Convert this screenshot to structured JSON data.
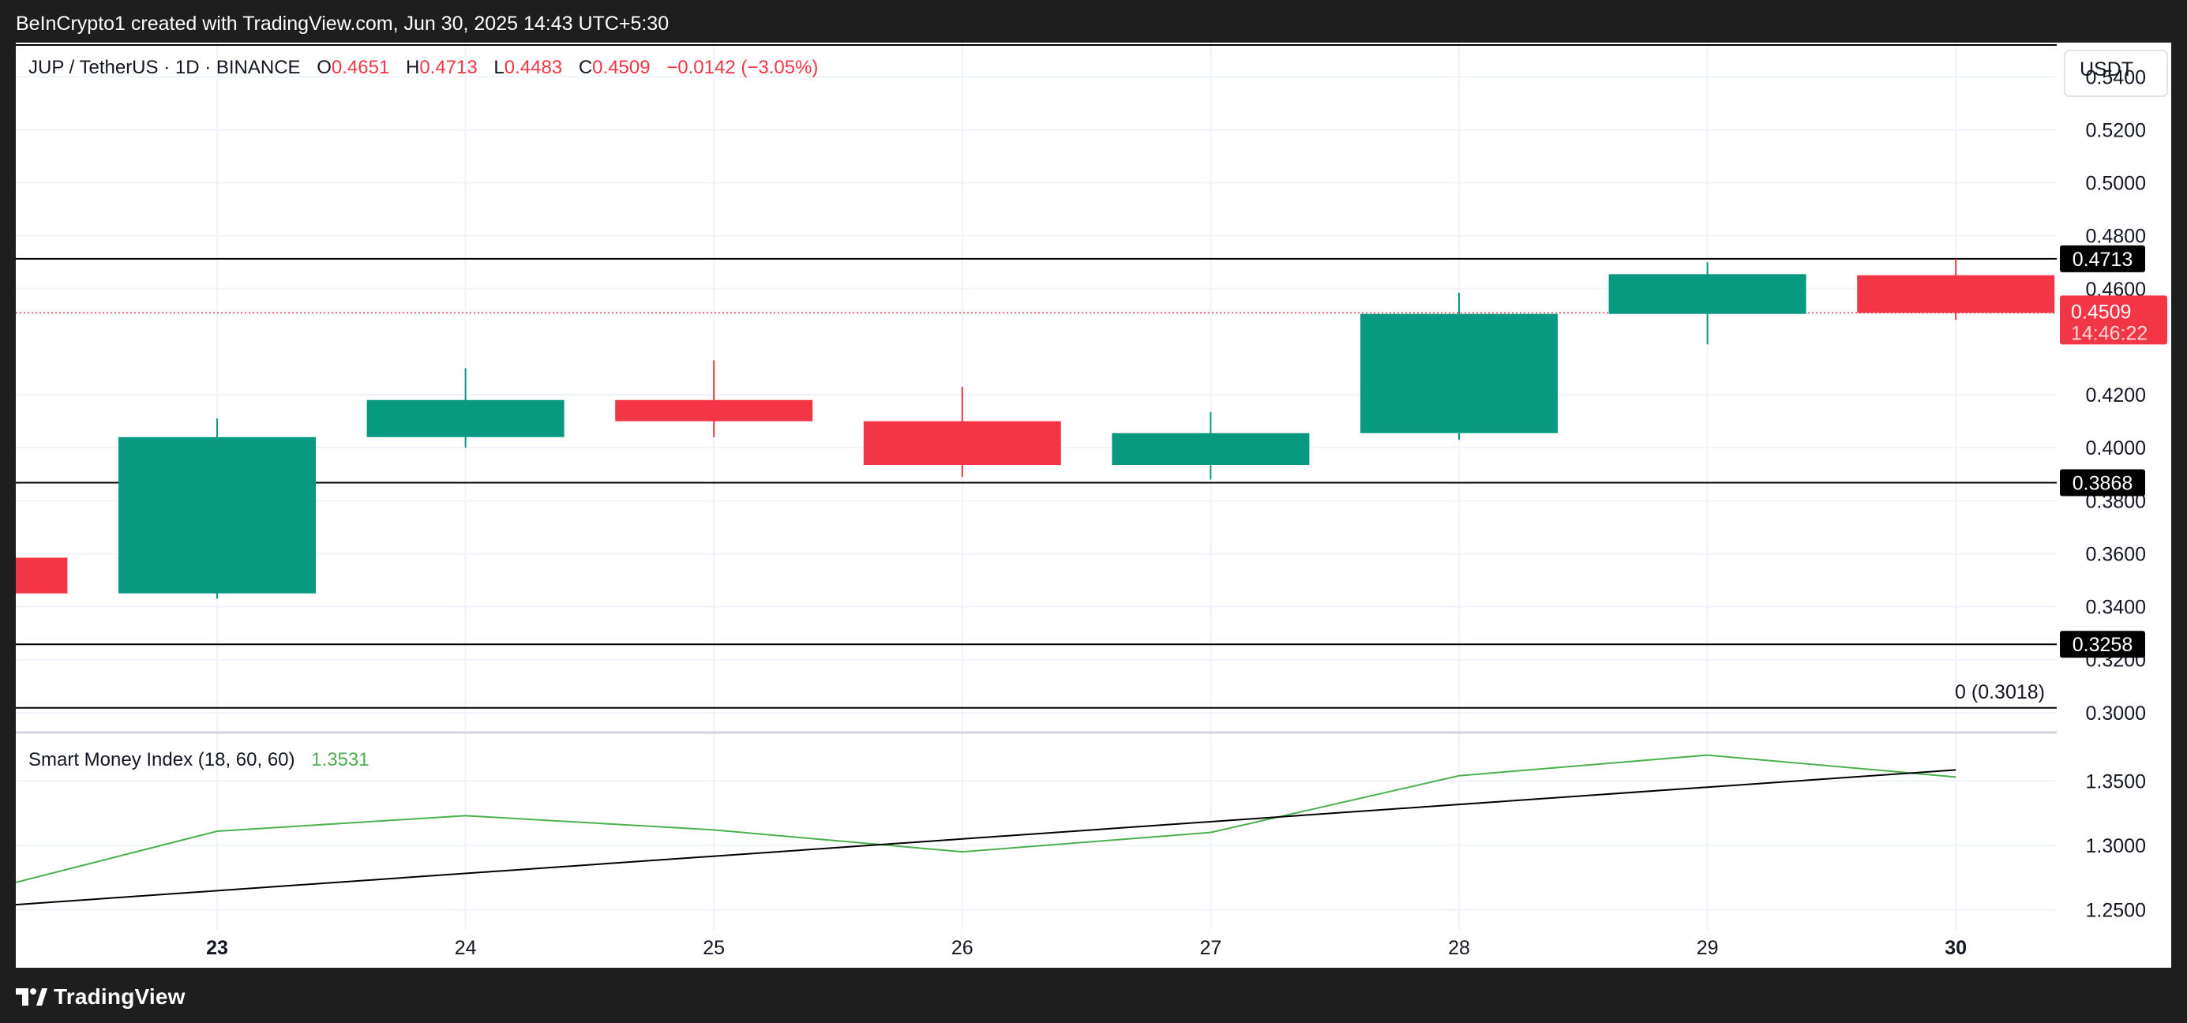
{
  "header": {
    "attribution": "BeInCrypto1 created with TradingView.com, Jun 30, 2025 14:43 UTC+5:30"
  },
  "footer": {
    "brand": "TradingView"
  },
  "colors": {
    "up": "#089981",
    "down": "#f23645",
    "smi_line": "#4caf50",
    "level_line": "#000000",
    "grid": "#f0f3fa"
  },
  "chart_data": [
    {
      "type": "candlestick",
      "symbol_line": {
        "symbol": "JUP / TetherUS · 1D · BINANCE",
        "o_label": "O",
        "o_value": "0.4651",
        "h_label": "H",
        "h_value": "0.4713",
        "l_label": "L",
        "l_value": "0.4483",
        "c_label": "C",
        "c_value": "0.4509",
        "change": "−0.0142 (−3.05%)"
      },
      "currency_label": "USDT",
      "x_ticks": [
        "23",
        "24",
        "25",
        "26",
        "27",
        "28",
        "29",
        "30"
      ],
      "x_ticks_bold": [
        "23",
        "30"
      ],
      "y_ticks": [
        "0.5400",
        "0.5200",
        "0.5000",
        "0.4800",
        "0.4600",
        "0.4200",
        "0.4000",
        "0.3800",
        "0.3600",
        "0.3400",
        "0.3200",
        "0.3000"
      ],
      "y_range": [
        0.2925,
        0.5523
      ],
      "candles": [
        {
          "date": "22",
          "open": 0.3585,
          "high": 0.3585,
          "low": 0.345,
          "close": 0.345,
          "partial": true
        },
        {
          "date": "23",
          "open": 0.345,
          "high": 0.411,
          "low": 0.343,
          "close": 0.404
        },
        {
          "date": "24",
          "open": 0.404,
          "high": 0.43,
          "low": 0.4,
          "close": 0.418
        },
        {
          "date": "25",
          "open": 0.418,
          "high": 0.433,
          "low": 0.404,
          "close": 0.41
        },
        {
          "date": "26",
          "open": 0.41,
          "high": 0.423,
          "low": 0.389,
          "close": 0.3935
        },
        {
          "date": "27",
          "open": 0.3935,
          "high": 0.4135,
          "low": 0.388,
          "close": 0.4055
        },
        {
          "date": "28",
          "open": 0.4055,
          "high": 0.4585,
          "low": 0.403,
          "close": 0.4505
        },
        {
          "date": "29",
          "open": 0.4505,
          "high": 0.47,
          "low": 0.439,
          "close": 0.4655
        },
        {
          "date": "30",
          "open": 0.4651,
          "high": 0.4713,
          "low": 0.4483,
          "close": 0.4509
        }
      ],
      "levels": [
        {
          "value": 0.4713,
          "label": "0.4713"
        },
        {
          "value": 0.3868,
          "label": "0.3868"
        },
        {
          "value": 0.3258,
          "label": "0.3258"
        },
        {
          "value": 0.3018,
          "label": "0 (0.3018)"
        }
      ],
      "last_price": {
        "value": 0.4509,
        "label": "0.4509",
        "countdown": "14:46:22"
      }
    },
    {
      "type": "line",
      "indicator_name": "Smart Money Index (18, 60, 60)",
      "indicator_value": "1.3531",
      "y_ticks": [
        "1.3500",
        "1.3000",
        "1.2500"
      ],
      "y_range": [
        1.2345,
        1.3875
      ],
      "series": [
        {
          "x": [
            "22",
            "23",
            "24",
            "25",
            "26",
            "27",
            "28",
            "29",
            "30"
          ],
          "values": [
            1.262,
            1.311,
            1.323,
            1.312,
            1.295,
            1.31,
            1.354,
            1.37,
            1.353
          ]
        }
      ],
      "trendline": {
        "from": [
          "22",
          1.2515
        ],
        "to": [
          "30",
          1.3585
        ]
      }
    }
  ]
}
